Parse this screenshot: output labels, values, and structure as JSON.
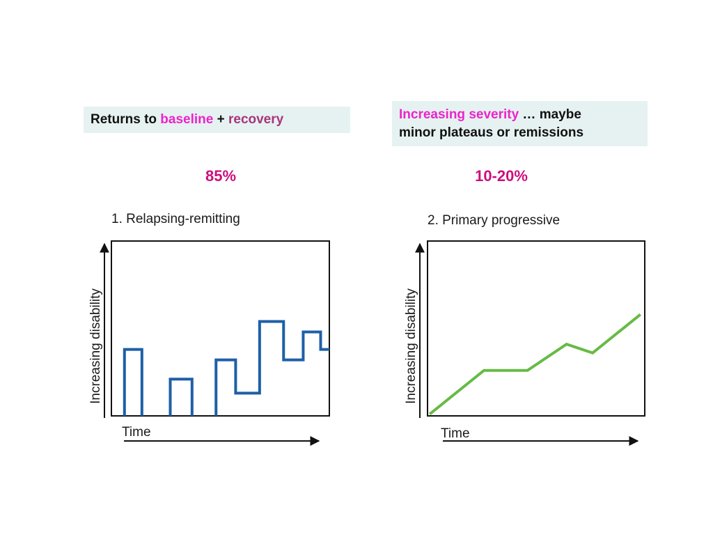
{
  "boxes": {
    "left": {
      "prefix": "Returns to ",
      "highlight1": "baseline",
      "joiner": " + ",
      "highlight2": "recovery"
    },
    "right": {
      "highlight": "Increasing severity",
      "rest_line1": " … maybe",
      "line2": "minor plateaus or  remissions"
    }
  },
  "percentages": {
    "left": "85%",
    "right": "10-20%"
  },
  "colors": {
    "box_background": "#e6f2f1",
    "highlight_pink": "#ee22cc",
    "highlight_plum": "#a8347a",
    "percent_color": "#cc0f7f",
    "relapsing_line": "#1e5fa8",
    "progressive_line": "#66bb44"
  },
  "chart_data": [
    {
      "type": "line",
      "title": "1. Relapsing-remitting",
      "xlabel": "Time",
      "ylabel": "Increasing disability",
      "xlim": [
        0,
        100
      ],
      "ylim": [
        0,
        100
      ],
      "grid": false,
      "series": [
        {
          "segments": [
            [
              [
                6,
                0
              ],
              [
                6,
                38
              ],
              [
                14,
                38
              ],
              [
                14,
                0
              ]
            ],
            [
              [
                27,
                0
              ],
              [
                27,
                21
              ],
              [
                37,
                21
              ],
              [
                37,
                0
              ]
            ],
            [
              [
                48,
                0
              ],
              [
                48,
                32
              ],
              [
                57,
                32
              ],
              [
                57,
                13
              ],
              [
                68,
                13
              ],
              [
                68,
                54
              ],
              [
                79,
                54
              ],
              [
                79,
                32
              ],
              [
                88,
                32
              ],
              [
                88,
                48
              ],
              [
                96,
                48
              ],
              [
                96,
                38
              ],
              [
                100,
                38
              ]
            ]
          ]
        }
      ]
    },
    {
      "type": "line",
      "title": "2. Primary progressive",
      "xlabel": "Time",
      "ylabel": "Increasing disability",
      "xlim": [
        0,
        100
      ],
      "ylim": [
        0,
        100
      ],
      "grid": false,
      "series": [
        {
          "points": [
            [
              1,
              1
            ],
            [
              26,
              26
            ],
            [
              46,
              26
            ],
            [
              64,
              41
            ],
            [
              76,
              36
            ],
            [
              98,
              58
            ]
          ]
        }
      ]
    }
  ]
}
